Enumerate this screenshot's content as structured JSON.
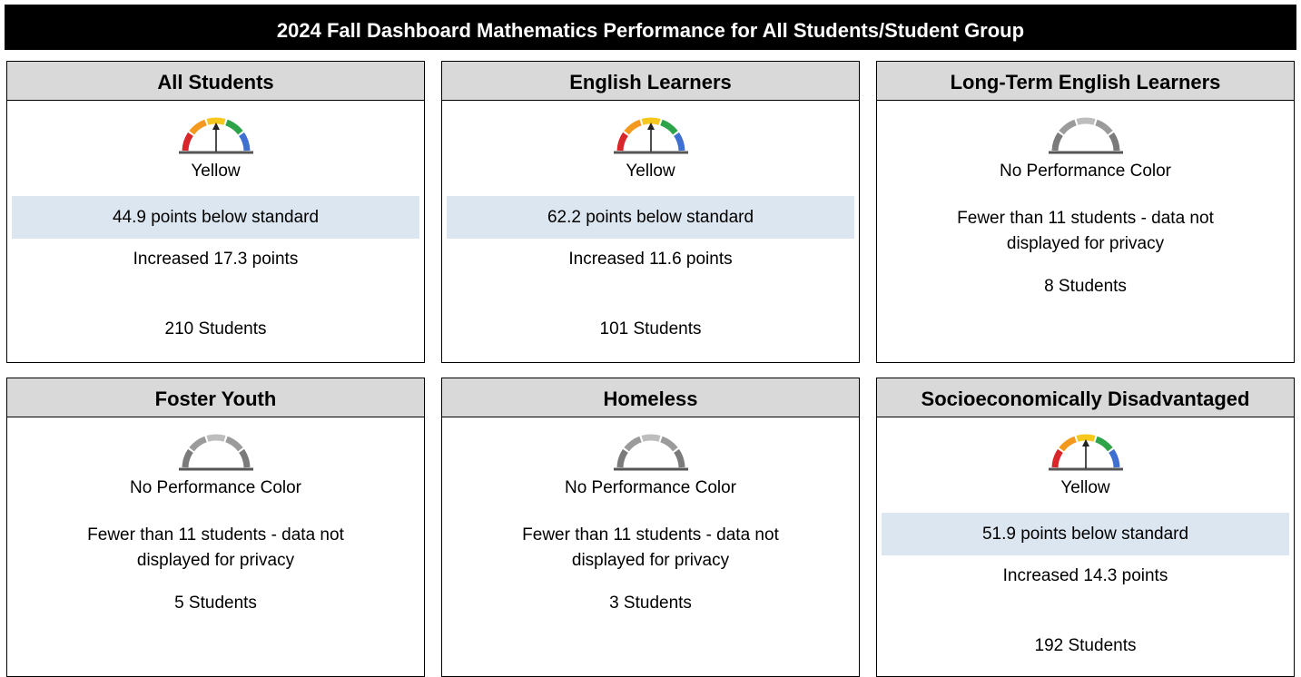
{
  "header": {
    "title": "2024 Fall Dashboard Mathematics Performance for All Students/Student Group"
  },
  "cards": [
    {
      "name": "All Students",
      "gauge": "colored",
      "color_label": "Yellow",
      "status": "44.9 points below standard",
      "change": "Increased 17.3 points",
      "students": "210 Students"
    },
    {
      "name": "English Learners",
      "gauge": "colored",
      "color_label": "Yellow",
      "status": "62.2 points below standard",
      "change": "Increased 11.6 points",
      "students": "101 Students"
    },
    {
      "name": "Long-Term English Learners",
      "gauge": "gray",
      "color_label": "No Performance Color",
      "note": "Fewer than 11 students - data not displayed for privacy",
      "students": "8 Students"
    },
    {
      "name": "Foster Youth",
      "gauge": "gray",
      "color_label": "No Performance Color",
      "note": "Fewer than 11 students - data not displayed for privacy",
      "students": "5 Students"
    },
    {
      "name": "Homeless",
      "gauge": "gray",
      "color_label": "No Performance Color",
      "note": "Fewer than 11 students - data not displayed for privacy",
      "students": "3 Students"
    },
    {
      "name": "Socioeconomically Disadvantaged",
      "gauge": "colored",
      "color_label": "Yellow",
      "status": "51.9 points below standard",
      "change": "Increased 14.3 points",
      "students": "192 Students"
    }
  ]
}
